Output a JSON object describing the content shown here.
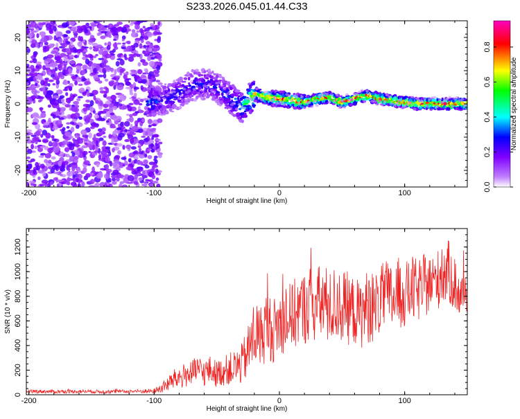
{
  "chart_data": [
    {
      "type": "heatmap",
      "title": "S233.2026.045.01.44.C33",
      "xlabel": "Height of straight line (km)",
      "ylabel": "Frequency (Hz)",
      "xlim": [
        -202,
        150
      ],
      "ylim": [
        -25,
        25
      ],
      "x_ticks": [
        -200,
        -100,
        0,
        100
      ],
      "y_ticks": [
        -20,
        -10,
        0,
        10,
        20
      ],
      "colorbar": {
        "label": "Normalized spectral amplitude",
        "range": [
          0,
          0.95
        ],
        "ticks": [
          0.0,
          0.2,
          0.4,
          0.6,
          0.8
        ],
        "colors": [
          "#ffffff",
          "#c080ff",
          "#8000ff",
          "#0000ff",
          "#00ffff",
          "#00ff00",
          "#ffff00",
          "#ff0000",
          "#ff00c0"
        ]
      },
      "ridge": {
        "x": [
          -100,
          -90,
          -80,
          -70,
          -60,
          -50,
          -40,
          -30,
          -20,
          -10,
          0,
          10,
          20,
          30,
          40,
          50,
          60,
          70,
          80,
          90,
          100,
          110,
          120,
          130,
          140,
          150
        ],
        "frequency": [
          0.5,
          1.5,
          3,
          5.5,
          6,
          5,
          2,
          -1,
          3,
          2,
          1.5,
          1,
          0.5,
          1.5,
          2,
          0.5,
          1.5,
          2.5,
          1.5,
          1,
          0.5,
          0,
          0,
          0,
          0,
          0
        ],
        "amplitude": [
          0.35,
          0.3,
          0.3,
          0.3,
          0.3,
          0.3,
          0.35,
          0.45,
          0.7,
          0.75,
          0.8,
          0.8,
          0.85,
          0.85,
          0.85,
          0.85,
          0.85,
          0.85,
          0.9,
          0.9,
          0.9,
          0.9,
          0.9,
          0.9,
          0.9,
          0.9
        ]
      },
      "noise_region": {
        "x_range": [
          -202,
          -100
        ],
        "typical_amplitude": 0.15
      }
    },
    {
      "type": "line",
      "xlabel": "Height of straight line (km)",
      "ylabel": "SNR (10 * v/v)",
      "xlim": [
        -202,
        150
      ],
      "ylim": [
        0,
        1350
      ],
      "x_ticks": [
        -200,
        -100,
        0,
        100
      ],
      "y_ticks": [
        0,
        200,
        400,
        600,
        800,
        1000,
        1200
      ],
      "color": "#ee2222",
      "series": [
        {
          "x": [
            -202,
            -180,
            -160,
            -140,
            -120,
            -100,
            -95,
            -90,
            -85,
            -80,
            -75,
            -70,
            -65,
            -60,
            -55,
            -50,
            -45,
            -40,
            -35,
            -30,
            -25,
            -20,
            -15,
            -10,
            -5,
            0,
            5,
            10,
            15,
            20,
            25,
            30,
            35,
            40,
            45,
            50,
            55,
            60,
            65,
            70,
            75,
            80,
            85,
            90,
            95,
            100,
            105,
            110,
            115,
            120,
            125,
            130,
            135,
            140,
            145,
            150
          ],
          "mid": [
            30,
            25,
            28,
            25,
            27,
            30,
            50,
            80,
            120,
            140,
            160,
            170,
            200,
            180,
            200,
            170,
            190,
            210,
            220,
            250,
            350,
            500,
            480,
            560,
            520,
            580,
            620,
            640,
            680,
            700,
            750,
            720,
            760,
            700,
            740,
            720,
            700,
            680,
            650,
            720,
            700,
            760,
            800,
            780,
            820,
            800,
            860,
            840,
            880,
            900,
            920,
            980,
            1000,
            900,
            780,
            900
          ],
          "amp": [
            15,
            15,
            15,
            15,
            15,
            20,
            40,
            60,
            80,
            100,
            100,
            110,
            120,
            110,
            120,
            110,
            120,
            130,
            150,
            170,
            220,
            300,
            250,
            300,
            260,
            280,
            280,
            280,
            300,
            300,
            320,
            320,
            340,
            300,
            320,
            300,
            300,
            280,
            280,
            300,
            280,
            280,
            300,
            280,
            300,
            260,
            280,
            260,
            260,
            240,
            240,
            260,
            260,
            240,
            200,
            220
          ]
        }
      ]
    }
  ]
}
